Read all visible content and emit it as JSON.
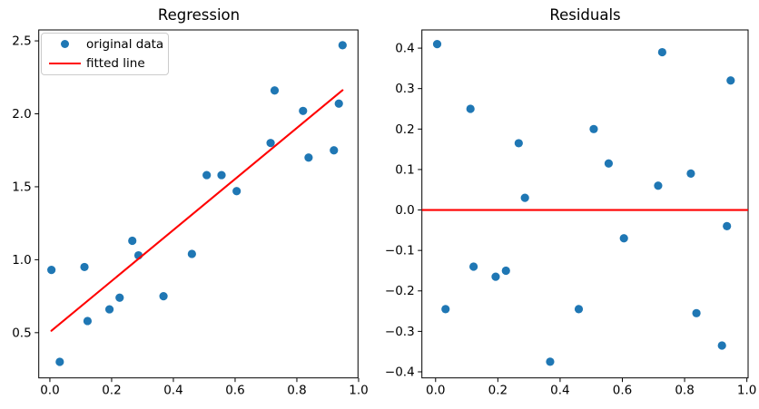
{
  "figure": {
    "background": "#ffffff"
  },
  "colors": {
    "scatter": "#1f77b4",
    "line": "#ff0000",
    "axis": "#000000",
    "legend_border": "#cccccc"
  },
  "chart_data": [
    {
      "type": "scatter",
      "title": "Regression",
      "xlabel": "",
      "ylabel": "",
      "xlim": [
        -0.036,
        0.998
      ],
      "ylim": [
        0.19,
        2.575
      ],
      "grid": false,
      "xticks": {
        "values": [
          0.0,
          0.2,
          0.4,
          0.6,
          0.8,
          1.0
        ],
        "labels": [
          "0.0",
          "0.2",
          "0.4",
          "0.6",
          "0.8",
          "1.0"
        ]
      },
      "yticks": {
        "values": [
          0.5,
          1.0,
          1.5,
          2.0,
          2.5
        ],
        "labels": [
          "0.5",
          "1.0",
          "1.5",
          "2.0",
          "2.5"
        ]
      },
      "legend": {
        "position": "upper left",
        "entries": [
          {
            "label": "original data",
            "marker": "dot",
            "color": "#1f77b4"
          },
          {
            "label": "fitted line",
            "marker": "line",
            "color": "#ff0000"
          }
        ]
      },
      "x": [
        0.005,
        0.032,
        0.112,
        0.122,
        0.193,
        0.226,
        0.267,
        0.287,
        0.368,
        0.46,
        0.508,
        0.556,
        0.605,
        0.715,
        0.728,
        0.82,
        0.838,
        0.92,
        0.936,
        0.948
      ],
      "series": [
        {
          "name": "original data",
          "type": "scatter",
          "color": "#1f77b4",
          "y": [
            0.93,
            0.3,
            0.95,
            0.58,
            0.66,
            0.74,
            1.13,
            1.03,
            0.75,
            1.04,
            1.58,
            1.58,
            1.47,
            1.8,
            2.16,
            2.02,
            1.7,
            1.75,
            2.07,
            2.47
          ]
        },
        {
          "name": "fitted line",
          "type": "line",
          "color": "#ff0000",
          "x": [
            0.005,
            0.948
          ],
          "y": [
            0.513,
            2.162
          ]
        }
      ]
    },
    {
      "type": "scatter",
      "title": "Residuals",
      "xlabel": "",
      "ylabel": "",
      "xlim": [
        -0.044,
        1.004
      ],
      "ylim": [
        -0.415,
        0.445
      ],
      "grid": false,
      "xticks": {
        "values": [
          0.0,
          0.2,
          0.4,
          0.6,
          0.8,
          1.0
        ],
        "labels": [
          "0.0",
          "0.2",
          "0.4",
          "0.6",
          "0.8",
          "1.0"
        ]
      },
      "yticks": {
        "values": [
          -0.4,
          -0.3,
          -0.2,
          -0.1,
          0.0,
          0.1,
          0.2,
          0.3,
          0.4
        ],
        "labels": [
          "−0.4",
          "−0.3",
          "−0.2",
          "−0.1",
          "0.0",
          "0.1",
          "0.2",
          "0.3",
          "0.4"
        ]
      },
      "x": [
        0.005,
        0.032,
        0.112,
        0.122,
        0.193,
        0.226,
        0.267,
        0.287,
        0.368,
        0.46,
        0.508,
        0.556,
        0.605,
        0.715,
        0.728,
        0.82,
        0.838,
        0.92,
        0.936,
        0.948
      ],
      "series": [
        {
          "name": "residuals",
          "type": "scatter",
          "color": "#1f77b4",
          "y": [
            0.41,
            -0.245,
            0.25,
            -0.14,
            -0.165,
            -0.15,
            0.165,
            0.03,
            -0.375,
            -0.245,
            0.2,
            0.115,
            -0.07,
            0.06,
            0.39,
            0.09,
            -0.255,
            -0.335,
            -0.04,
            0.32
          ]
        },
        {
          "name": "zero line",
          "type": "hline",
          "color": "#ff0000",
          "y": 0.0
        }
      ]
    }
  ]
}
